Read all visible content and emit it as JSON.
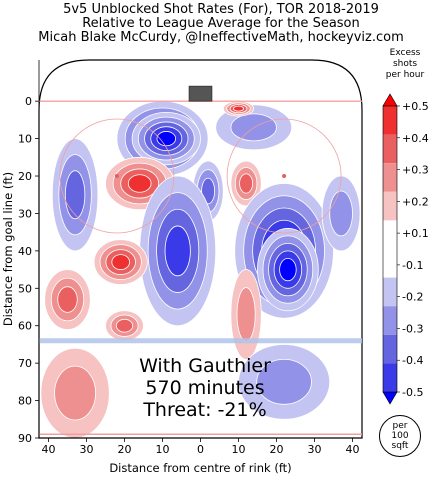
{
  "title_lines": [
    "5v5 Unblocked Shot Rates (For), TOR 2018-2019",
    "Relative to League Average for the Season",
    "Micah Blake McCurdy, @IneffectiveMath, hockeyviz.com"
  ],
  "overlay": {
    "player": "With Gauthier",
    "minutes": "570 minutes",
    "threat": "Threat: -21%"
  },
  "legend": {
    "title_lines": [
      "Excess",
      "shots",
      "per hour"
    ],
    "ticks": [
      "+0.5",
      "+0.4",
      "+0.3",
      "+0.2",
      "+0.1",
      "-0.1",
      "-0.2",
      "-0.3",
      "-0.4",
      "-0.5"
    ],
    "unit_lines": [
      "per",
      "100",
      "sqft"
    ],
    "colors": [
      "#0000ff",
      "#3a3ae8",
      "#6565e0",
      "#9292e8",
      "#c4c4f2",
      "#ffffff",
      "#f6c2c2",
      "#ee9090",
      "#ea6060",
      "#ee3030",
      "#ff0000"
    ]
  },
  "chart_data": {
    "type": "heatmap",
    "title": "5v5 Unblocked Shot Rates (For), TOR 2018-2019",
    "subtitle": "Relative to League Average for the Season",
    "xlabel": "Distance from centre of rink (ft)",
    "ylabel": "Distance from goal line (ft)",
    "xlim": [
      -42.5,
      42.5
    ],
    "ylim": [
      90,
      -11
    ],
    "x_ticks": [
      -40,
      -30,
      -20,
      -10,
      0,
      10,
      20,
      30,
      40
    ],
    "x_tick_labels": [
      "40",
      "30",
      "20",
      "10",
      "0",
      "10",
      "20",
      "30",
      "40"
    ],
    "y_ticks": [
      0,
      10,
      20,
      30,
      40,
      50,
      60,
      70,
      80,
      90
    ],
    "y_tick_labels": [
      "0",
      "10",
      "20",
      "30",
      "40",
      "50",
      "60",
      "70",
      "80",
      "90"
    ],
    "color_range": [
      -0.5,
      0.5
    ],
    "blobs": [
      {
        "x": -10,
        "y": 10,
        "rx": 12,
        "ry": 10,
        "value": -0.5
      },
      {
        "x": -9,
        "y": 10,
        "rx": 9,
        "ry": 7,
        "value": -0.5
      },
      {
        "x": 14,
        "y": 7,
        "rx": 10,
        "ry": 6,
        "value": -0.15
      },
      {
        "x": 10,
        "y": 2,
        "rx": 4,
        "ry": 2,
        "value": 0.4
      },
      {
        "x": -33,
        "y": 25,
        "rx": 6,
        "ry": 15,
        "value": -0.3
      },
      {
        "x": -16,
        "y": 22,
        "rx": 9,
        "ry": 7,
        "value": 0.35
      },
      {
        "x": 2,
        "y": 24,
        "rx": 4,
        "ry": 8,
        "value": -0.25
      },
      {
        "x": 12,
        "y": 22,
        "rx": 4,
        "ry": 6,
        "value": 0.3
      },
      {
        "x": 22,
        "y": 40,
        "rx": 13,
        "ry": 18,
        "value": -0.5
      },
      {
        "x": 23,
        "y": 45,
        "rx": 8,
        "ry": 11,
        "value": -0.5
      },
      {
        "x": -6,
        "y": 40,
        "rx": 10,
        "ry": 20,
        "value": -0.35
      },
      {
        "x": -21,
        "y": 43,
        "rx": 7,
        "ry": 6,
        "value": 0.4
      },
      {
        "x": -35,
        "y": 53,
        "rx": 6,
        "ry": 8,
        "value": 0.3
      },
      {
        "x": -20,
        "y": 60,
        "rx": 5,
        "ry": 4,
        "value": 0.25
      },
      {
        "x": 12,
        "y": 57,
        "rx": 4,
        "ry": 12,
        "value": 0.15
      },
      {
        "x": 22,
        "y": 75,
        "rx": 12,
        "ry": 10,
        "value": -0.15
      },
      {
        "x": -33,
        "y": 78,
        "rx": 9,
        "ry": 12,
        "value": 0.15
      },
      {
        "x": 37,
        "y": 30,
        "rx": 5,
        "ry": 10,
        "value": -0.15
      }
    ]
  }
}
